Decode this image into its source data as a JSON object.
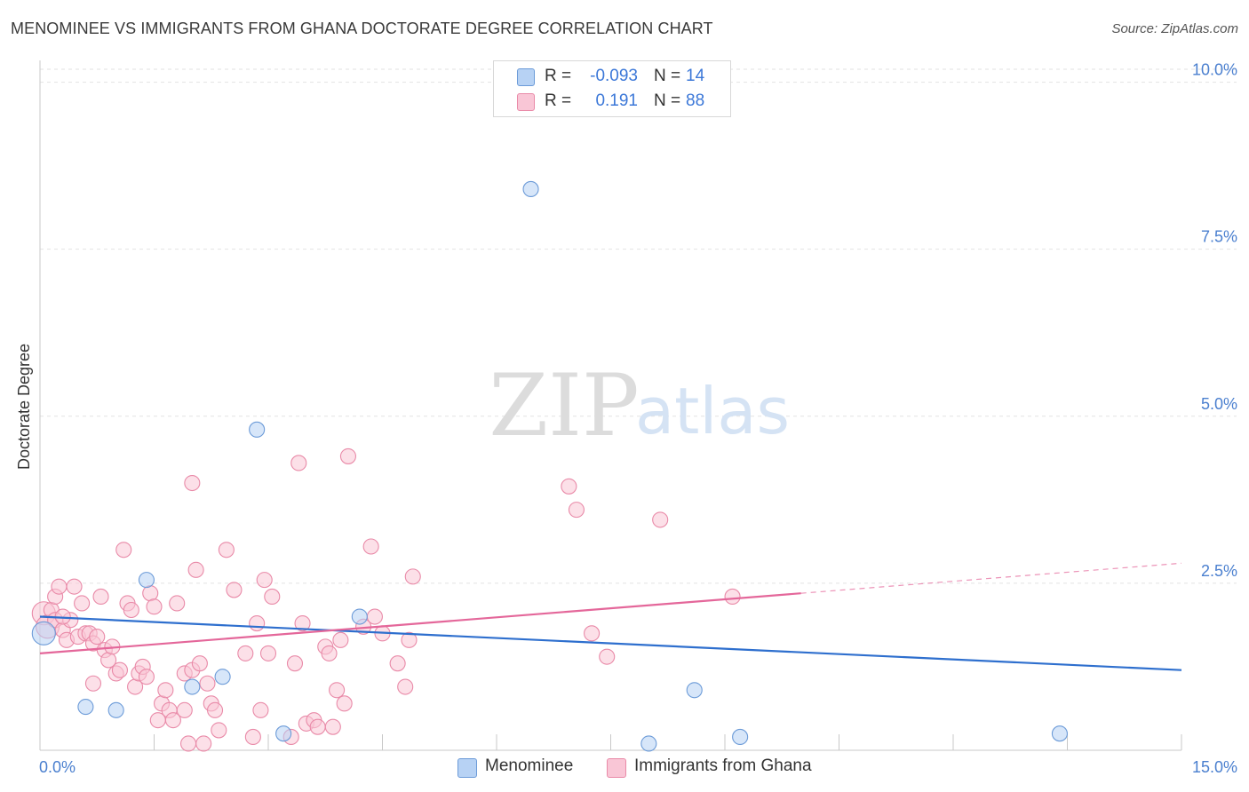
{
  "title": "MENOMINEE VS IMMIGRANTS FROM GHANA DOCTORATE DEGREE CORRELATION CHART",
  "source": "Source: ZipAtlas.com",
  "watermark": {
    "zip": "ZIP",
    "atlas": "atlas"
  },
  "legend": {
    "rows": [
      {
        "r_label": "R =",
        "r_value": "-0.093",
        "n_label": "N =",
        "n_value": "14",
        "fill": "#b7d2f4",
        "stroke": "#6c9bd8"
      },
      {
        "r_label": "R =",
        "r_value": "0.191",
        "n_label": "N =",
        "n_value": "88",
        "fill": "#f9c6d6",
        "stroke": "#e98aa8"
      }
    ]
  },
  "bottom_legend": {
    "items": [
      {
        "label": "Menominee",
        "fill": "#b7d2f4",
        "stroke": "#6c9bd8"
      },
      {
        "label": "Immigrants from Ghana",
        "fill": "#f9c6d6",
        "stroke": "#e98aa8"
      }
    ]
  },
  "chart_data": {
    "type": "scatter",
    "title": "MENOMINEE VS IMMIGRANTS FROM GHANA DOCTORATE DEGREE CORRELATION CHART",
    "xlabel": "",
    "ylabel": "Doctorate Degree",
    "xlim": [
      0,
      15
    ],
    "ylim": [
      0,
      10.3
    ],
    "x_tick_labels": [
      "0.0%",
      "15.0%"
    ],
    "y_ticks": [
      2.5,
      5.0,
      7.5,
      10.0
    ],
    "y_tick_labels": [
      "2.5%",
      "5.0%",
      "7.5%",
      "10.0%"
    ],
    "grid": true,
    "series": [
      {
        "name": "Menominee",
        "color": "#6c9bd8",
        "fill": "#b7d2f4",
        "line_color": "#2e6fce",
        "points": [
          [
            0.05,
            1.75
          ],
          [
            0.6,
            0.65
          ],
          [
            1.0,
            0.6
          ],
          [
            1.4,
            2.55
          ],
          [
            2.0,
            0.95
          ],
          [
            2.4,
            1.1
          ],
          [
            2.85,
            4.8
          ],
          [
            3.2,
            0.25
          ],
          [
            4.2,
            2.0
          ],
          [
            6.45,
            8.4
          ],
          [
            8.0,
            0.1
          ],
          [
            8.6,
            0.9
          ],
          [
            9.2,
            0.2
          ],
          [
            13.4,
            0.25
          ]
        ],
        "trend": {
          "x0": 0,
          "y0": 2.0,
          "x1": 15,
          "y1": 1.2
        }
      },
      {
        "name": "Immigrants from Ghana",
        "color": "#e98aa8",
        "fill": "#f9c6d6",
        "line_color": "#e4679a",
        "points": [
          [
            0.05,
            2.05
          ],
          [
            0.1,
            1.85
          ],
          [
            0.15,
            2.1
          ],
          [
            0.2,
            2.3
          ],
          [
            0.2,
            1.95
          ],
          [
            0.25,
            2.45
          ],
          [
            0.3,
            1.8
          ],
          [
            0.35,
            1.65
          ],
          [
            0.4,
            1.95
          ],
          [
            0.45,
            2.45
          ],
          [
            0.5,
            1.7
          ],
          [
            0.55,
            2.2
          ],
          [
            0.6,
            1.75
          ],
          [
            0.65,
            1.75
          ],
          [
            0.7,
            1.6
          ],
          [
            0.75,
            1.7
          ],
          [
            0.7,
            1.0
          ],
          [
            0.8,
            2.3
          ],
          [
            0.85,
            1.5
          ],
          [
            0.9,
            1.35
          ],
          [
            0.95,
            1.55
          ],
          [
            1.0,
            1.15
          ],
          [
            1.05,
            1.2
          ],
          [
            1.1,
            3.0
          ],
          [
            1.15,
            2.2
          ],
          [
            1.2,
            2.1
          ],
          [
            1.25,
            0.95
          ],
          [
            1.3,
            1.15
          ],
          [
            1.35,
            1.25
          ],
          [
            1.4,
            1.1
          ],
          [
            1.45,
            2.35
          ],
          [
            1.5,
            2.15
          ],
          [
            1.55,
            0.45
          ],
          [
            1.6,
            0.7
          ],
          [
            1.65,
            0.9
          ],
          [
            1.7,
            0.6
          ],
          [
            1.75,
            0.45
          ],
          [
            1.8,
            2.2
          ],
          [
            1.9,
            0.6
          ],
          [
            1.9,
            1.15
          ],
          [
            1.95,
            0.1
          ],
          [
            2.0,
            1.2
          ],
          [
            2.0,
            4.0
          ],
          [
            2.05,
            2.7
          ],
          [
            2.1,
            1.3
          ],
          [
            2.15,
            0.1
          ],
          [
            2.2,
            1.0
          ],
          [
            2.25,
            0.7
          ],
          [
            2.3,
            0.6
          ],
          [
            2.35,
            0.3
          ],
          [
            2.45,
            3.0
          ],
          [
            2.55,
            2.4
          ],
          [
            2.7,
            1.45
          ],
          [
            2.8,
            0.2
          ],
          [
            2.85,
            1.9
          ],
          [
            2.9,
            0.6
          ],
          [
            2.95,
            2.55
          ],
          [
            3.0,
            1.45
          ],
          [
            3.05,
            2.3
          ],
          [
            3.3,
            0.2
          ],
          [
            3.35,
            1.3
          ],
          [
            3.4,
            4.3
          ],
          [
            3.45,
            1.9
          ],
          [
            3.5,
            0.4
          ],
          [
            3.6,
            0.45
          ],
          [
            3.65,
            0.35
          ],
          [
            3.75,
            1.55
          ],
          [
            3.8,
            1.45
          ],
          [
            3.85,
            0.35
          ],
          [
            3.9,
            0.9
          ],
          [
            3.95,
            1.65
          ],
          [
            4.0,
            0.7
          ],
          [
            4.05,
            4.4
          ],
          [
            4.25,
            1.85
          ],
          [
            4.35,
            3.05
          ],
          [
            4.4,
            2.0
          ],
          [
            4.5,
            1.75
          ],
          [
            4.7,
            1.3
          ],
          [
            4.8,
            0.95
          ],
          [
            4.85,
            1.65
          ],
          [
            4.9,
            2.6
          ],
          [
            6.95,
            3.95
          ],
          [
            7.05,
            3.6
          ],
          [
            7.25,
            1.75
          ],
          [
            7.45,
            1.4
          ],
          [
            8.15,
            3.45
          ],
          [
            9.1,
            2.3
          ],
          [
            0.3,
            2.0
          ]
        ],
        "trend": {
          "x0": 0,
          "y0": 1.45,
          "x1": 10.0,
          "y1": 2.35
        },
        "trend_dashed_extension": {
          "x0": 10.0,
          "y0": 2.35,
          "x1": 15,
          "y1": 2.8
        }
      }
    ]
  }
}
